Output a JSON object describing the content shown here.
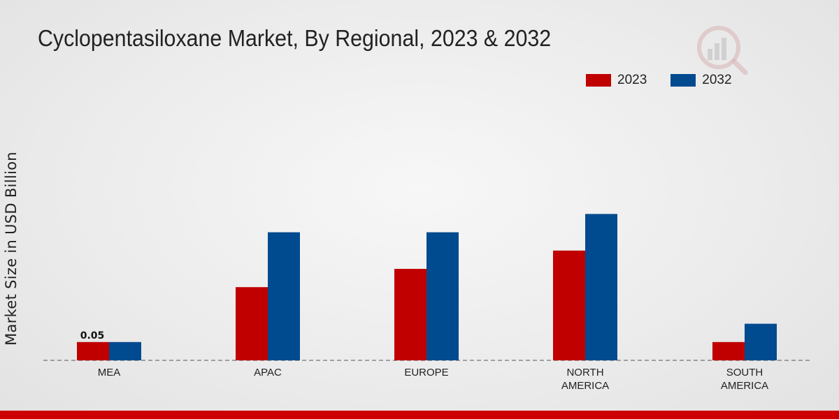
{
  "chart_data": {
    "type": "bar",
    "title": "Cyclopentasiloxane Market, By Regional, 2023 & 2032",
    "ylabel": "Market Size in USD Billion",
    "xlabel": "",
    "categories": [
      "MEA",
      "APAC",
      "EUROPE",
      "NORTH AMERICA",
      "SOUTH AMERICA"
    ],
    "category_lines": [
      [
        "MEA"
      ],
      [
        "APAC"
      ],
      [
        "EUROPE"
      ],
      [
        "NORTH",
        "AMERICA"
      ],
      [
        "SOUTH",
        "AMERICA"
      ]
    ],
    "series": [
      {
        "name": "2023",
        "color": "#c00000",
        "values": [
          0.05,
          0.2,
          0.25,
          0.3,
          0.05
        ]
      },
      {
        "name": "2032",
        "color": "#004a8f",
        "values": [
          0.05,
          0.35,
          0.35,
          0.4,
          0.1
        ]
      }
    ],
    "data_labels": [
      {
        "series": 0,
        "index": 0,
        "text": "0.05"
      }
    ],
    "ylim": [
      0,
      0.5
    ],
    "grid": false,
    "legend_position": "top-right"
  }
}
